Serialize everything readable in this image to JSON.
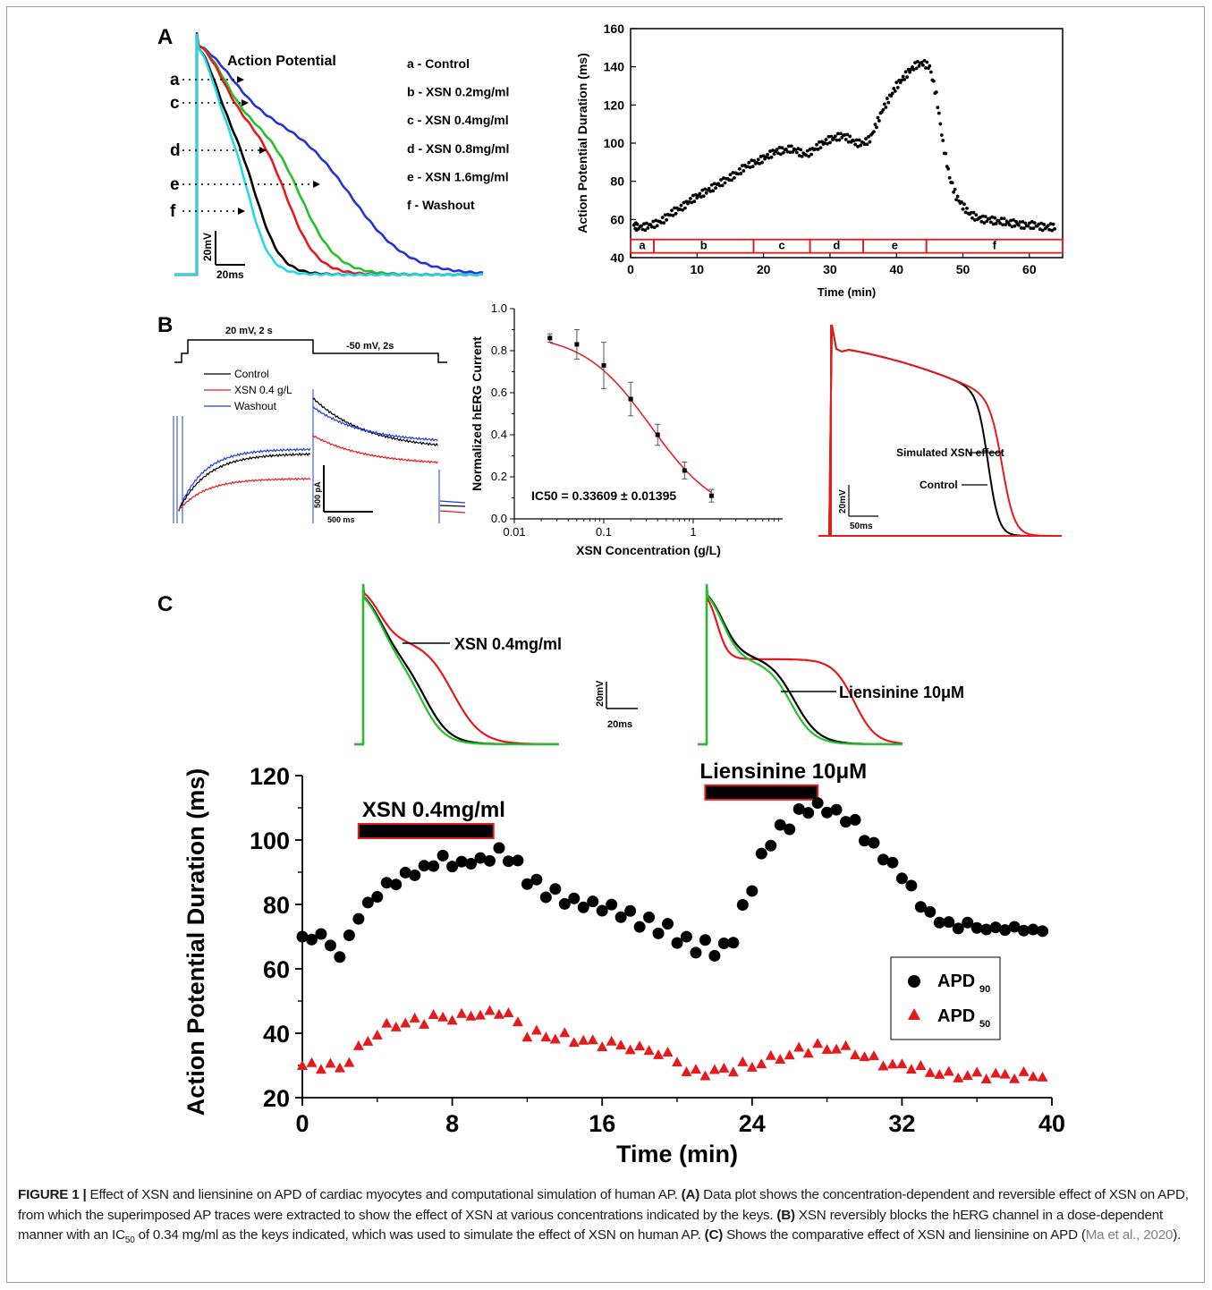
{
  "figure": {
    "panels": {
      "A": "A",
      "B": "B",
      "C": "C"
    },
    "A_traces": {
      "title": "Action Potential",
      "trace_letters": [
        "a",
        "c",
        "d",
        "e",
        "f"
      ],
      "legend": [
        "a - Control",
        "b - XSN 0.2mg/ml",
        "c - XSN 0.4mg/ml",
        "d - XSN 0.8mg/ml",
        "e - XSN 1.6mg/ml",
        "f - Washout"
      ],
      "scale_v": "20mV",
      "scale_t": "20ms",
      "colors": {
        "control": "#000000",
        "xsn02": "#e41a1c",
        "xsn04": "#22c22a",
        "xsn08": "#2432d8",
        "washout": "#22d8e8"
      }
    },
    "B_currents": {
      "step1": "20 mV, 2 s",
      "step2": "-50 mV, 2s",
      "legend": [
        "Control",
        "XSN 0.4 g/L",
        "Washout"
      ],
      "scale_i": "500 pA",
      "scale_t": "500 ms",
      "colors": {
        "control": "#000000",
        "xsn": "#e41a1c",
        "washout": "#1f3de0"
      }
    },
    "B_sim": {
      "label_xsn": "Simulated XSN effect",
      "label_control": "Control",
      "scale_v": "20mV",
      "scale_t": "50ms"
    },
    "C_traces": {
      "label_left": "XSN 0.4mg/ml",
      "label_right": "Liensinine 10μM",
      "scale_v": "20mV",
      "scale_t": "20ms"
    }
  },
  "chart_data": [
    {
      "id": "A-right",
      "type": "scatter",
      "xlabel": "Time (min)",
      "ylabel": "Action Potential Duration (ms)",
      "xlim": [
        0,
        65
      ],
      "ylim": [
        40,
        160
      ],
      "xticks": [
        0,
        10,
        20,
        30,
        40,
        50,
        60
      ],
      "yticks": [
        40,
        60,
        80,
        100,
        120,
        140,
        160
      ],
      "segments": [
        {
          "label": "a",
          "start": 0,
          "end": 3.5
        },
        {
          "label": "b",
          "start": 3.5,
          "end": 18.5
        },
        {
          "label": "c",
          "start": 18.5,
          "end": 27
        },
        {
          "label": "d",
          "start": 27,
          "end": 35
        },
        {
          "label": "e",
          "start": 35,
          "end": 44.5
        },
        {
          "label": "f",
          "start": 44.5,
          "end": 65
        }
      ],
      "series": [
        {
          "values": [
            [
              0.5,
              57
            ],
            [
              1,
              56
            ],
            [
              2,
              56
            ],
            [
              3,
              57
            ],
            [
              4,
              58
            ],
            [
              5,
              60
            ],
            [
              6,
              63
            ],
            [
              7,
              65
            ],
            [
              8,
              67
            ],
            [
              9,
              70
            ],
            [
              10,
              72
            ],
            [
              11,
              74
            ],
            [
              12,
              76
            ],
            [
              13,
              78
            ],
            [
              14,
              80
            ],
            [
              15,
              82
            ],
            [
              16,
              84
            ],
            [
              17,
              87
            ],
            [
              18,
              89
            ],
            [
              19,
              90
            ],
            [
              20,
              92
            ],
            [
              21,
              94
            ],
            [
              22,
              96
            ],
            [
              23,
              96
            ],
            [
              24,
              97
            ],
            [
              25,
              96
            ],
            [
              26,
              94
            ],
            [
              27,
              95
            ],
            [
              28,
              98
            ],
            [
              29,
              100
            ],
            [
              30,
              102
            ],
            [
              31,
              103
            ],
            [
              32,
              104
            ],
            [
              33,
              102
            ],
            [
              34,
              100
            ],
            [
              35,
              100
            ],
            [
              36,
              102
            ],
            [
              37,
              110
            ],
            [
              38,
              118
            ],
            [
              39,
              124
            ],
            [
              40,
              130
            ],
            [
              41,
              134
            ],
            [
              42,
              138
            ],
            [
              43,
              141
            ],
            [
              44,
              142
            ],
            [
              45,
              140
            ],
            [
              46,
              125
            ],
            [
              47,
              100
            ],
            [
              48,
              82
            ],
            [
              49,
              72
            ],
            [
              50,
              67
            ],
            [
              51,
              63
            ],
            [
              52,
              61
            ],
            [
              53,
              60
            ],
            [
              54,
              60
            ],
            [
              55,
              59
            ],
            [
              56,
              59
            ],
            [
              57,
              58
            ],
            [
              58,
              58
            ],
            [
              59,
              57
            ],
            [
              60,
              57
            ],
            [
              61,
              57
            ],
            [
              62,
              56
            ],
            [
              63,
              56
            ],
            [
              64,
              56
            ]
          ]
        }
      ]
    },
    {
      "id": "B-middle",
      "type": "line",
      "xlabel": "XSN Concentration (g/L)",
      "ylabel": "Normalized hERG Current",
      "x_scale": "log",
      "xlim": [
        0.01,
        10
      ],
      "ylim": [
        0.0,
        1.0
      ],
      "xticks": [
        "0.01",
        "0.1",
        "1"
      ],
      "yticks": [
        "0.0",
        "0.2",
        "0.4",
        "0.6",
        "0.8",
        "1.0"
      ],
      "annotation": "IC50 = 0.33609 ± 0.01395",
      "series": [
        {
          "values": [
            {
              "x": 0.025,
              "y": 0.86,
              "err": 0.02
            },
            {
              "x": 0.05,
              "y": 0.83,
              "err": 0.07
            },
            {
              "x": 0.1,
              "y": 0.73,
              "err": 0.11
            },
            {
              "x": 0.2,
              "y": 0.57,
              "err": 0.08
            },
            {
              "x": 0.4,
              "y": 0.4,
              "err": 0.05
            },
            {
              "x": 0.8,
              "y": 0.23,
              "err": 0.04
            },
            {
              "x": 1.6,
              "y": 0.11,
              "err": 0.03
            }
          ]
        }
      ]
    },
    {
      "id": "C-bottom",
      "type": "scatter",
      "xlabel": "Time (min)",
      "ylabel": "Action Potential Duration (ms)",
      "xlim": [
        0,
        40
      ],
      "ylim": [
        20,
        120
      ],
      "xticks": [
        0,
        8,
        16,
        24,
        32,
        40
      ],
      "yticks": [
        20,
        40,
        60,
        80,
        100,
        120
      ],
      "bars": [
        {
          "label": "XSN 0.4mg/ml",
          "start": 3,
          "end": 10.2
        },
        {
          "label": "Liensinine 10μM",
          "start": 21.5,
          "end": 27.5
        }
      ],
      "legend": [
        "APD90",
        "APD50"
      ],
      "series": [
        {
          "name": "APD90",
          "values": [
            [
              0,
              70
            ],
            [
              0.5,
              69
            ],
            [
              1,
              71
            ],
            [
              1.5,
              67
            ],
            [
              2,
              64
            ],
            [
              2.5,
              70
            ],
            [
              3,
              76
            ],
            [
              3.5,
              80
            ],
            [
              4,
              83
            ],
            [
              4.5,
              86
            ],
            [
              5,
              87
            ],
            [
              5.5,
              89
            ],
            [
              6,
              90
            ],
            [
              6.5,
              91
            ],
            [
              7,
              93
            ],
            [
              7.5,
              94
            ],
            [
              8,
              93
            ],
            [
              8.5,
              92
            ],
            [
              9,
              94
            ],
            [
              9.5,
              93
            ],
            [
              10,
              95
            ],
            [
              10.5,
              96
            ],
            [
              11,
              95
            ],
            [
              11.5,
              92
            ],
            [
              12,
              88
            ],
            [
              12.5,
              86
            ],
            [
              13,
              84
            ],
            [
              13.5,
              83
            ],
            [
              14,
              82
            ],
            [
              14.5,
              80
            ],
            [
              15,
              81
            ],
            [
              15.5,
              79
            ],
            [
              16,
              80
            ],
            [
              16.5,
              78
            ],
            [
              17,
              78
            ],
            [
              17.5,
              76
            ],
            [
              18,
              75
            ],
            [
              18.5,
              74
            ],
            [
              19,
              73
            ],
            [
              19.5,
              72
            ],
            [
              20,
              70
            ],
            [
              20.5,
              68
            ],
            [
              21,
              67
            ],
            [
              21.5,
              67
            ],
            [
              22,
              66
            ],
            [
              22.5,
              66
            ],
            [
              23,
              70
            ],
            [
              23.5,
              78
            ],
            [
              24,
              86
            ],
            [
              24.5,
              94
            ],
            [
              25,
              100
            ],
            [
              25.5,
              103
            ],
            [
              26,
              105
            ],
            [
              26.5,
              108
            ],
            [
              27,
              110
            ],
            [
              27.5,
              110
            ],
            [
              28,
              110
            ],
            [
              28.5,
              108
            ],
            [
              29,
              107
            ],
            [
              29.5,
              105
            ],
            [
              30,
              101
            ],
            [
              30.5,
              98
            ],
            [
              31,
              95
            ],
            [
              31.5,
              92
            ],
            [
              32,
              89
            ],
            [
              32.5,
              85
            ],
            [
              33,
              80
            ],
            [
              33.5,
              77
            ],
            [
              34,
              75
            ],
            [
              34.5,
              74
            ],
            [
              35,
              73
            ],
            [
              35.5,
              74
            ],
            [
              36,
              73
            ],
            [
              36.5,
              72
            ],
            [
              37,
              73
            ],
            [
              37.5,
              72
            ],
            [
              38,
              73
            ],
            [
              38.5,
              72
            ],
            [
              39,
              72
            ],
            [
              39.5,
              72
            ]
          ]
        },
        {
          "name": "APD50",
          "values": [
            [
              0,
              30
            ],
            [
              0.5,
              30
            ],
            [
              1,
              30
            ],
            [
              1.5,
              30
            ],
            [
              2,
              29
            ],
            [
              2.5,
              32
            ],
            [
              3,
              35
            ],
            [
              3.5,
              38
            ],
            [
              4,
              40
            ],
            [
              4.5,
              42
            ],
            [
              5,
              43
            ],
            [
              5.5,
              43
            ],
            [
              6,
              44
            ],
            [
              6.5,
              44
            ],
            [
              7,
              45
            ],
            [
              7.5,
              45
            ],
            [
              8,
              45
            ],
            [
              8.5,
              45
            ],
            [
              9,
              46
            ],
            [
              9.5,
              46
            ],
            [
              10,
              46
            ],
            [
              10.5,
              47
            ],
            [
              11,
              46
            ],
            [
              11.5,
              43
            ],
            [
              12,
              40
            ],
            [
              12.5,
              40
            ],
            [
              13,
              39
            ],
            [
              13.5,
              39
            ],
            [
              14,
              39
            ],
            [
              14.5,
              38
            ],
            [
              15,
              38
            ],
            [
              15.5,
              37
            ],
            [
              16,
              37
            ],
            [
              16.5,
              37
            ],
            [
              17,
              36
            ],
            [
              17.5,
              36
            ],
            [
              18,
              35
            ],
            [
              18.5,
              35
            ],
            [
              19,
              34
            ],
            [
              19.5,
              33
            ],
            [
              20,
              32
            ],
            [
              20.5,
              28
            ],
            [
              21,
              28
            ],
            [
              21.5,
              28
            ],
            [
              22,
              28
            ],
            [
              22.5,
              29
            ],
            [
              23,
              29
            ],
            [
              23.5,
              30
            ],
            [
              24,
              30
            ],
            [
              24.5,
              31
            ],
            [
              25,
              32
            ],
            [
              25.5,
              33
            ],
            [
              26,
              33
            ],
            [
              26.5,
              35
            ],
            [
              27,
              35
            ],
            [
              27.5,
              36
            ],
            [
              28,
              35
            ],
            [
              28.5,
              36
            ],
            [
              29,
              35
            ],
            [
              29.5,
              34
            ],
            [
              30,
              33
            ],
            [
              30.5,
              32
            ],
            [
              31,
              31
            ],
            [
              31.5,
              30
            ],
            [
              32,
              30
            ],
            [
              32.5,
              30
            ],
            [
              33,
              29
            ],
            [
              33.5,
              28
            ],
            [
              34,
              28
            ],
            [
              34.5,
              27
            ],
            [
              35,
              27
            ],
            [
              35.5,
              27
            ],
            [
              36,
              27
            ],
            [
              36.5,
              27
            ],
            [
              37,
              27
            ],
            [
              37.5,
              27
            ],
            [
              38,
              27
            ],
            [
              38.5,
              27
            ],
            [
              39,
              27
            ],
            [
              39.5,
              27
            ]
          ]
        }
      ]
    }
  ],
  "caption": {
    "fig_label": "FIGURE 1 |",
    "intro": " Effect of XSN and liensinine on APD of cardiac myocytes and computational simulation of human AP. ",
    "a_label": "(A)",
    "a_text": " Data plot shows the concentration-dependent and reversible effect of XSN on APD, from which the superimposed AP traces were extracted to show the effect of XSN at various concentrations indicated by the keys. ",
    "b_label": "(B)",
    "b_text1": " XSN reversibly blocks the hERG channel in a dose-dependent manner with an IC",
    "b_sub": "50",
    "b_text2": " of 0.34 mg/ml as the keys indicated, which was used to simulate the effect of XSN on human AP. ",
    "c_label": "(C)",
    "c_text": " Shows the comparative effect of XSN and liensinine on APD (",
    "citation": "Ma et al., 2020",
    "c_end": ")."
  }
}
